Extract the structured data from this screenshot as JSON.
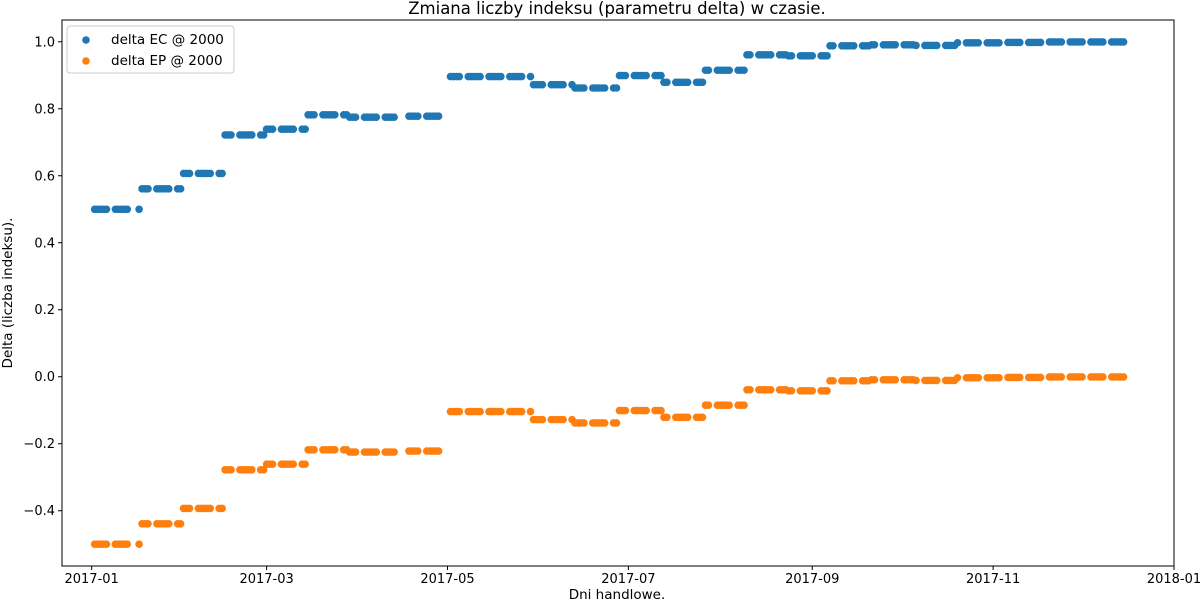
{
  "chart_data": {
    "type": "scatter",
    "title": "Zmiana liczby indeksu (parametru delta) w czasie.",
    "xlabel": "Dni handlowe.",
    "ylabel": "Delta (liczba indeksu).",
    "xlim": [
      "2016-12-22",
      "2018-01-01"
    ],
    "ylim": [
      -0.565,
      1.065
    ],
    "x_ticks": [
      "2017-01",
      "2017-03",
      "2017-05",
      "2017-07",
      "2017-09",
      "2017-11",
      "2018-01"
    ],
    "y_ticks": [
      -0.4,
      -0.2,
      0.0,
      0.2,
      0.4,
      0.6,
      0.8,
      1.0
    ],
    "y_tick_labels": [
      "−0.4",
      "−0.2",
      "0.0",
      "0.2",
      "0.4",
      "0.6",
      "0.8",
      "1.0"
    ],
    "legend": {
      "position": "top-left"
    },
    "grid": false,
    "series": [
      {
        "name": "delta EC @ 2000",
        "color": "#1f77b4",
        "segments": [
          {
            "from": "2017-01-02",
            "to": "2017-01-13",
            "value": 0.5,
            "exclude_weekdays": [
              0,
              6
            ]
          },
          {
            "from": "2017-01-17",
            "to": "2017-01-17",
            "value": 0.5
          },
          {
            "from": "2017-01-18",
            "to": "2017-01-31",
            "value": 0.561,
            "exclude_weekdays": [
              0,
              6
            ]
          },
          {
            "from": "2017-02-01",
            "to": "2017-02-14",
            "value": 0.607,
            "exclude_weekdays": [
              0,
              6
            ]
          },
          {
            "from": "2017-02-15",
            "to": "2017-02-28",
            "value": 0.722,
            "exclude_weekdays": [
              0,
              6
            ]
          },
          {
            "from": "2017-03-01",
            "to": "2017-03-14",
            "value": 0.739,
            "exclude_weekdays": [
              0,
              6
            ]
          },
          {
            "from": "2017-03-15",
            "to": "2017-03-28",
            "value": 0.782,
            "exclude_weekdays": [
              0,
              6
            ]
          },
          {
            "from": "2017-03-29",
            "to": "2017-04-11",
            "value": 0.775,
            "exclude_weekdays": [
              0,
              6
            ]
          },
          {
            "from": "2017-04-12",
            "to": "2017-04-13",
            "value": 0.775
          },
          {
            "from": "2017-04-18",
            "to": "2017-04-28",
            "value": 0.778,
            "exclude_weekdays": [
              0,
              6
            ]
          },
          {
            "from": "2017-05-02",
            "to": "2017-05-29",
            "value": 0.896,
            "exclude_weekdays": [
              0,
              6
            ]
          },
          {
            "from": "2017-05-30",
            "to": "2017-06-12",
            "value": 0.872,
            "exclude_weekdays": [
              0,
              6
            ]
          },
          {
            "from": "2017-06-13",
            "to": "2017-06-27",
            "value": 0.862,
            "exclude_weekdays": [
              0,
              6
            ]
          },
          {
            "from": "2017-06-28",
            "to": "2017-07-12",
            "value": 0.899,
            "exclude_weekdays": [
              0,
              6
            ]
          },
          {
            "from": "2017-07-13",
            "to": "2017-07-26",
            "value": 0.879,
            "exclude_weekdays": [
              0,
              6
            ]
          },
          {
            "from": "2017-07-27",
            "to": "2017-08-09",
            "value": 0.915,
            "exclude_weekdays": [
              0,
              6
            ]
          },
          {
            "from": "2017-08-10",
            "to": "2017-08-23",
            "value": 0.961,
            "exclude_weekdays": [
              0,
              6
            ]
          },
          {
            "from": "2017-08-24",
            "to": "2017-09-06",
            "value": 0.958,
            "exclude_weekdays": [
              0,
              6
            ]
          },
          {
            "from": "2017-09-07",
            "to": "2017-09-20",
            "value": 0.988,
            "exclude_weekdays": [
              0,
              6
            ]
          },
          {
            "from": "2017-09-21",
            "to": "2017-10-05",
            "value": 0.991,
            "exclude_weekdays": [
              0,
              6
            ]
          },
          {
            "from": "2017-10-06",
            "to": "2017-10-19",
            "value": 0.989,
            "exclude_weekdays": [
              0,
              6
            ]
          },
          {
            "from": "2017-10-20",
            "to": "2017-11-03",
            "value": 0.997,
            "exclude_weekdays": [
              0,
              6
            ]
          },
          {
            "from": "2017-11-06",
            "to": "2017-11-17",
            "value": 0.998,
            "exclude_weekdays": [
              0,
              6
            ]
          },
          {
            "from": "2017-11-20",
            "to": "2017-12-15",
            "value": 0.9995,
            "exclude_weekdays": [
              0,
              6
            ]
          }
        ]
      },
      {
        "name": "delta EP @ 2000",
        "color": "#ff7f0e",
        "segments": [
          {
            "from": "2017-01-02",
            "to": "2017-01-13",
            "value": -0.5,
            "exclude_weekdays": [
              0,
              6
            ]
          },
          {
            "from": "2017-01-17",
            "to": "2017-01-17",
            "value": -0.5
          },
          {
            "from": "2017-01-18",
            "to": "2017-01-31",
            "value": -0.439,
            "exclude_weekdays": [
              0,
              6
            ]
          },
          {
            "from": "2017-02-01",
            "to": "2017-02-14",
            "value": -0.393,
            "exclude_weekdays": [
              0,
              6
            ]
          },
          {
            "from": "2017-02-15",
            "to": "2017-02-28",
            "value": -0.278,
            "exclude_weekdays": [
              0,
              6
            ]
          },
          {
            "from": "2017-03-01",
            "to": "2017-03-14",
            "value": -0.261,
            "exclude_weekdays": [
              0,
              6
            ]
          },
          {
            "from": "2017-03-15",
            "to": "2017-03-28",
            "value": -0.218,
            "exclude_weekdays": [
              0,
              6
            ]
          },
          {
            "from": "2017-03-29",
            "to": "2017-04-11",
            "value": -0.225,
            "exclude_weekdays": [
              0,
              6
            ]
          },
          {
            "from": "2017-04-12",
            "to": "2017-04-13",
            "value": -0.225
          },
          {
            "from": "2017-04-18",
            "to": "2017-04-28",
            "value": -0.222,
            "exclude_weekdays": [
              0,
              6
            ]
          },
          {
            "from": "2017-05-02",
            "to": "2017-05-29",
            "value": -0.104,
            "exclude_weekdays": [
              0,
              6
            ]
          },
          {
            "from": "2017-05-30",
            "to": "2017-06-12",
            "value": -0.128,
            "exclude_weekdays": [
              0,
              6
            ]
          },
          {
            "from": "2017-06-13",
            "to": "2017-06-27",
            "value": -0.138,
            "exclude_weekdays": [
              0,
              6
            ]
          },
          {
            "from": "2017-06-28",
            "to": "2017-07-12",
            "value": -0.101,
            "exclude_weekdays": [
              0,
              6
            ]
          },
          {
            "from": "2017-07-13",
            "to": "2017-07-26",
            "value": -0.121,
            "exclude_weekdays": [
              0,
              6
            ]
          },
          {
            "from": "2017-07-27",
            "to": "2017-08-09",
            "value": -0.085,
            "exclude_weekdays": [
              0,
              6
            ]
          },
          {
            "from": "2017-08-10",
            "to": "2017-08-23",
            "value": -0.039,
            "exclude_weekdays": [
              0,
              6
            ]
          },
          {
            "from": "2017-08-24",
            "to": "2017-09-06",
            "value": -0.042,
            "exclude_weekdays": [
              0,
              6
            ]
          },
          {
            "from": "2017-09-07",
            "to": "2017-09-20",
            "value": -0.012,
            "exclude_weekdays": [
              0,
              6
            ]
          },
          {
            "from": "2017-09-21",
            "to": "2017-10-05",
            "value": -0.009,
            "exclude_weekdays": [
              0,
              6
            ]
          },
          {
            "from": "2017-10-06",
            "to": "2017-10-19",
            "value": -0.011,
            "exclude_weekdays": [
              0,
              6
            ]
          },
          {
            "from": "2017-10-20",
            "to": "2017-11-03",
            "value": -0.003,
            "exclude_weekdays": [
              0,
              6
            ]
          },
          {
            "from": "2017-11-06",
            "to": "2017-11-17",
            "value": -0.002,
            "exclude_weekdays": [
              0,
              6
            ]
          },
          {
            "from": "2017-11-20",
            "to": "2017-12-15",
            "value": -0.0005,
            "exclude_weekdays": [
              0,
              6
            ]
          }
        ]
      }
    ]
  }
}
